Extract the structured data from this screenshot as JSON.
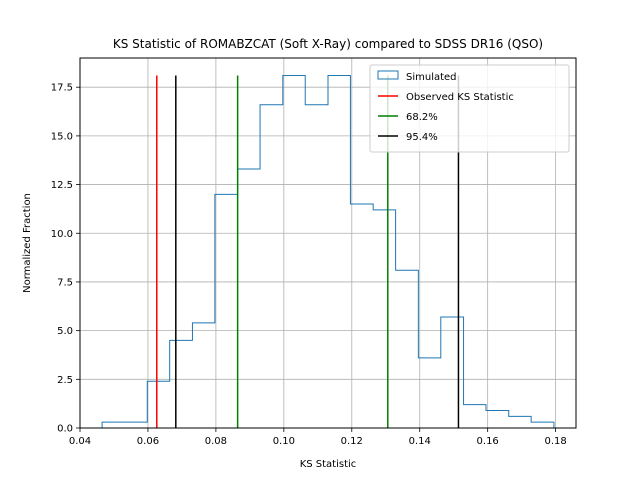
{
  "chart_data": {
    "type": "histogram",
    "title": "KS Statistic of ROMABZCAT (Soft X-Ray) compared to SDSS DR16 (QSO)",
    "xlabel": "KS Statistic",
    "ylabel": "Normalized Fraction",
    "xlim": [
      0.04,
      0.186
    ],
    "ylim": [
      0,
      19.0
    ],
    "xticks": [
      "0.04",
      "0.06",
      "0.08",
      "0.10",
      "0.12",
      "0.14",
      "0.16",
      "0.18"
    ],
    "yticks": [
      "0.0",
      "2.5",
      "5.0",
      "7.5",
      "10.0",
      "12.5",
      "15.0",
      "17.5"
    ],
    "grid": true,
    "legend_position": "upper-right",
    "histogram": {
      "name": "Simulated",
      "color": "#1f77b4",
      "bin_edges": [
        0.0465,
        0.0598,
        0.0664,
        0.0731,
        0.0797,
        0.0864,
        0.093,
        0.0997,
        0.1063,
        0.113,
        0.1196,
        0.1263,
        0.1329,
        0.1396,
        0.1462,
        0.1529,
        0.1595,
        0.1662,
        0.1728,
        0.1795
      ],
      "values": [
        0.3,
        2.4,
        4.5,
        5.4,
        12.0,
        13.3,
        16.6,
        18.1,
        16.6,
        18.1,
        11.5,
        11.2,
        8.1,
        3.6,
        5.7,
        1.2,
        0.9,
        0.6,
        0.3
      ]
    },
    "vlines": [
      {
        "name": "Observed KS Statistic",
        "x": 0.0626,
        "color": "#ff0000"
      },
      {
        "name": "68.2%",
        "x": 0.0864,
        "color": "#008000"
      },
      {
        "name": "68.2%",
        "x": 0.1306,
        "color": "#008000"
      },
      {
        "name": "95.4%",
        "x": 0.0682,
        "color": "#000000"
      },
      {
        "name": "95.4%",
        "x": 0.1514,
        "color": "#000000"
      }
    ],
    "vline_top": 18.1,
    "legend": [
      {
        "label": "Simulated",
        "kind": "box",
        "color": "#1f77b4"
      },
      {
        "label": "Observed KS Statistic",
        "kind": "line",
        "color": "#ff0000"
      },
      {
        "label": "68.2%",
        "kind": "line",
        "color": "#008000"
      },
      {
        "label": "95.4%",
        "kind": "line",
        "color": "#000000"
      }
    ]
  }
}
